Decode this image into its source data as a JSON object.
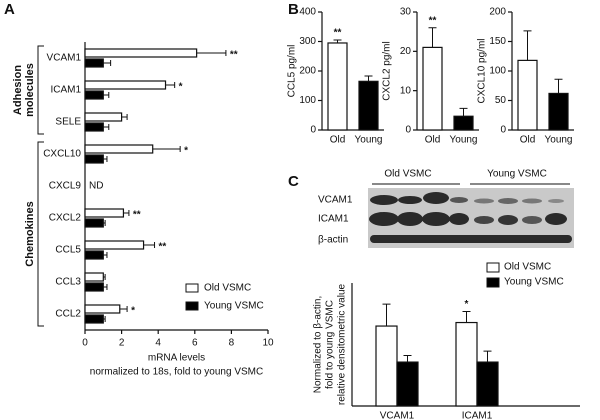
{
  "panel_labels": [
    "A",
    "B",
    "C"
  ],
  "blot": {
    "lanes": [
      "Old VSMC",
      "Young VSMC"
    ],
    "rows": [
      "VCAM1",
      "ICAM1",
      "β-actin"
    ]
  },
  "chart_data": [
    {
      "type": "barh",
      "categories": [
        "VCAM1",
        "ICAM1",
        "SELE",
        "CXCL10",
        "CXCL9",
        "CXCL2",
        "CCL5",
        "CCL3",
        "CCL2"
      ],
      "series": [
        {
          "name": "Old VSMC",
          "color": "#ffffff",
          "values": [
            6.1,
            4.4,
            2.0,
            3.7,
            null,
            2.1,
            3.2,
            1.0,
            1.9
          ],
          "errors": [
            1.6,
            0.5,
            0.3,
            1.5,
            null,
            0.3,
            0.6,
            0.1,
            0.4
          ]
        },
        {
          "name": "Young VSMC",
          "color": "#000000",
          "values": [
            1,
            1,
            1,
            1,
            null,
            1,
            1,
            1,
            1
          ],
          "errors": [
            0.4,
            0.3,
            0.3,
            0.2,
            null,
            0.1,
            0.2,
            0.2,
            0.1
          ]
        }
      ],
      "significance": [
        "**",
        "*",
        null,
        "*",
        null,
        "**",
        "**",
        null,
        "*"
      ],
      "annotations": [
        {
          "category": "CXCL9",
          "text": "ND"
        }
      ],
      "groups": [
        {
          "label": [
            "Adhesion",
            "molecules"
          ],
          "from": "VCAM1",
          "to": "SELE"
        },
        {
          "label": [
            "Chemokines"
          ],
          "from": "CXCL10",
          "to": "CCL2"
        }
      ],
      "xlabel": [
        "mRNA levels",
        "normalized to 18s, fold to young VSMC"
      ],
      "xlim": [
        0,
        10
      ],
      "xticks": [
        0,
        2,
        4,
        6,
        8,
        10
      ],
      "legend": "lower right"
    },
    {
      "type": "bar",
      "ylabel": "CCL5 pg/ml",
      "categories": [
        "Old",
        "Young"
      ],
      "colors": [
        "#ffffff",
        "#000000"
      ],
      "values": [
        295,
        165
      ],
      "errors": [
        10,
        18
      ],
      "significance": [
        "**",
        null
      ],
      "ylim": [
        0,
        400
      ],
      "yticks": [
        0,
        100,
        200,
        300,
        400
      ]
    },
    {
      "type": "bar",
      "ylabel": "CXCL2 pg/ml",
      "categories": [
        "Old",
        "Young"
      ],
      "colors": [
        "#ffffff",
        "#000000"
      ],
      "values": [
        21,
        3.5
      ],
      "errors": [
        5,
        2
      ],
      "significance": [
        "**",
        null
      ],
      "ylim": [
        0,
        30
      ],
      "yticks": [
        0,
        10,
        20,
        30
      ]
    },
    {
      "type": "bar",
      "ylabel": "CXCL10 pg/ml",
      "categories": [
        "Old",
        "Young"
      ],
      "colors": [
        "#ffffff",
        "#000000"
      ],
      "values": [
        118,
        62
      ],
      "errors": [
        50,
        24
      ],
      "significance": [
        null,
        null
      ],
      "ylim": [
        0,
        200
      ],
      "yticks": [
        0,
        50,
        100,
        150,
        200
      ]
    },
    {
      "type": "bar",
      "ylabel": [
        "Normalized to β-actin,",
        "fold to young VSMC",
        "relative densitometric value"
      ],
      "categories": [
        "VCAM1",
        "ICAM1"
      ],
      "series": [
        {
          "name": "Old VSMC",
          "color": "#ffffff",
          "values": [
            1.82,
            1.9
          ],
          "errors": [
            0.5,
            0.25
          ]
        },
        {
          "name": "Young VSMC",
          "color": "#000000",
          "values": [
            1.0,
            1.0
          ],
          "errors": [
            0.15,
            0.25
          ]
        }
      ],
      "significance": [
        null,
        "*"
      ],
      "ylim": [
        0,
        2.8
      ],
      "legend": "upper right"
    }
  ]
}
